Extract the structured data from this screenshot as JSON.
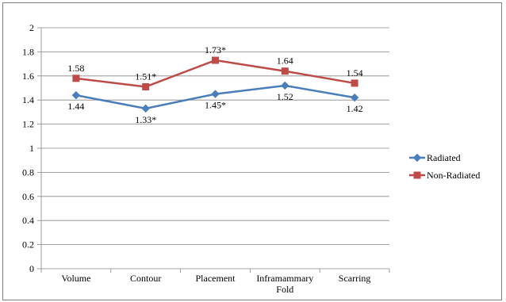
{
  "chart_data": {
    "type": "line",
    "title": "",
    "xlabel": "",
    "ylabel": "",
    "categories": [
      "Volume",
      "Contour",
      "Placement",
      "Inframammary Fold",
      "Scarring"
    ],
    "category_lines": [
      [
        "Volume"
      ],
      [
        "Contour"
      ],
      [
        "Placement"
      ],
      [
        "Inframammary",
        "Fold"
      ],
      [
        "Scarring"
      ]
    ],
    "ylim": [
      0,
      2
    ],
    "yticks": [
      0,
      0.2,
      0.4,
      0.6,
      0.8,
      1,
      1.2,
      1.4,
      1.6,
      1.8,
      2
    ],
    "ytick_labels": [
      "0",
      "0.2",
      "0.4",
      "0.6",
      "0.8",
      "1",
      "1.2",
      "1.4",
      "1.6",
      "1.8",
      "2"
    ],
    "grid": true,
    "legend_position": "right",
    "series": [
      {
        "name": "Radiated",
        "color": "#4a7ebb",
        "marker": "diamond",
        "values": [
          1.44,
          1.33,
          1.45,
          1.52,
          1.42
        ],
        "labels": [
          "1.44",
          "1.33*",
          "1.45*",
          "1.52",
          "1.42"
        ],
        "label_position": "below"
      },
      {
        "name": "Non-Radiated",
        "color": "#be4b48",
        "marker": "square",
        "values": [
          1.58,
          1.51,
          1.73,
          1.64,
          1.54
        ],
        "labels": [
          "1.58",
          "1.51*",
          "1.73*",
          "1.64",
          "1.54"
        ],
        "label_position": "above"
      }
    ]
  }
}
